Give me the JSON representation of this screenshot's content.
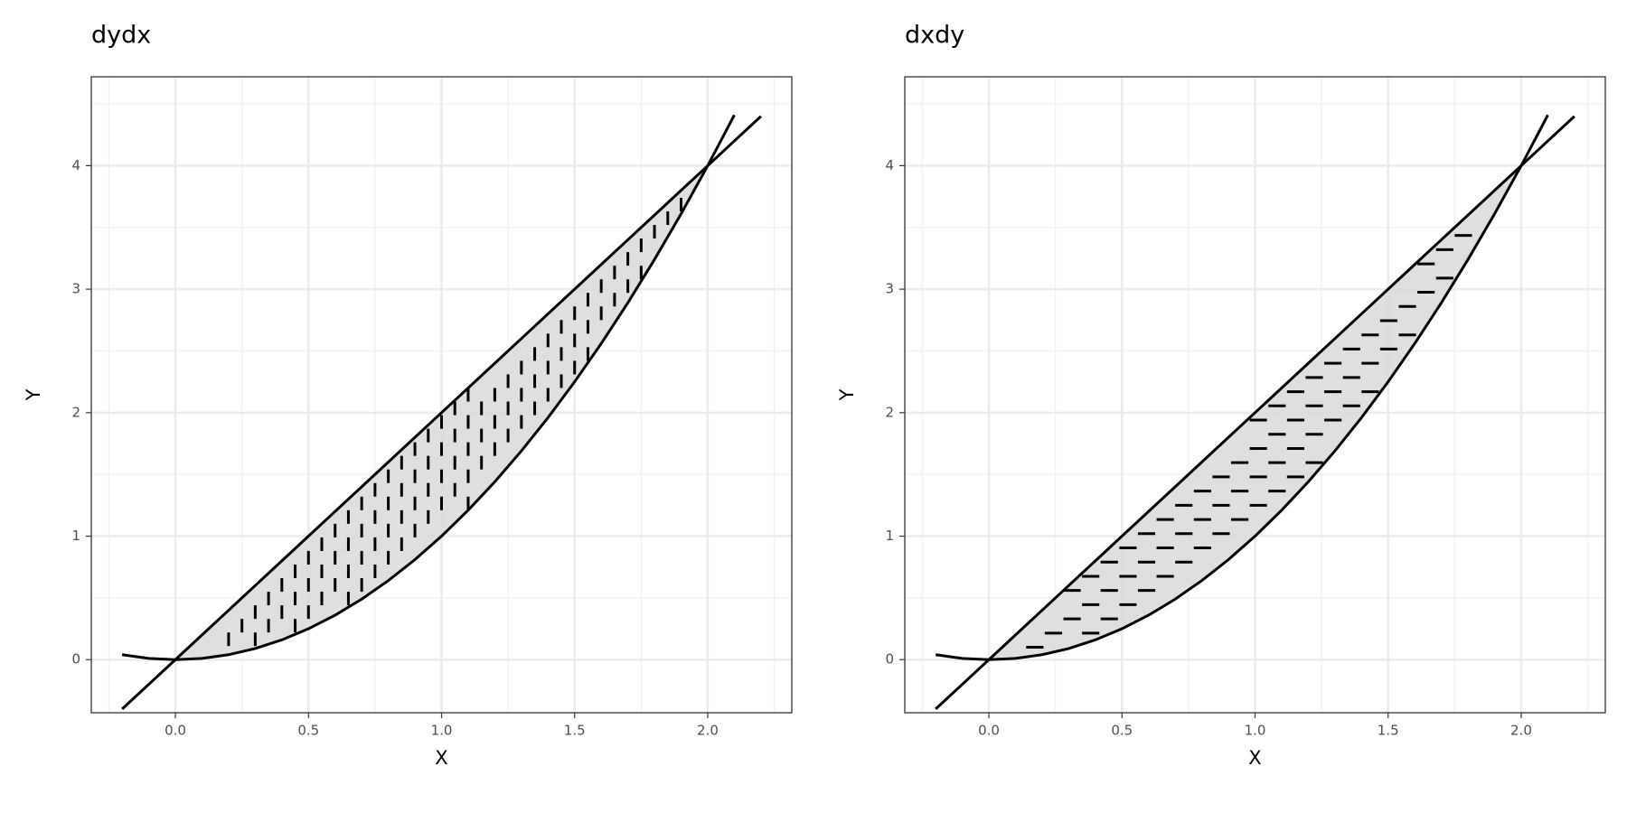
{
  "chart_data": [
    {
      "type": "line",
      "title": "dydx",
      "x_label": "X",
      "y_label": "Y",
      "x": [
        -0.2,
        -0.1,
        0,
        0.1,
        0.2,
        0.3,
        0.4,
        0.5,
        0.6,
        0.7,
        0.8,
        0.9,
        1,
        1.1,
        1.2,
        1.3,
        1.4,
        1.5,
        1.6,
        1.7,
        1.8,
        1.9,
        2,
        2.1,
        2.2
      ],
      "series": [
        {
          "color": "#000000",
          "values": [
            -0.4,
            -0.2,
            0,
            0.2,
            0.4,
            0.6,
            0.8,
            1,
            1.2,
            1.4,
            1.6,
            1.8,
            2,
            2.2,
            2.4,
            2.6,
            2.8,
            3,
            3.2,
            3.4,
            3.6,
            3.8,
            4,
            4.2,
            4.4
          ]
        },
        {
          "color": "#000000",
          "values": [
            0.04,
            0.01,
            0,
            0.01,
            0.04,
            0.09,
            0.16,
            0.25,
            0.36,
            0.49,
            0.64,
            0.81,
            1,
            1.21,
            1.44,
            1.69,
            1.96,
            2.25,
            2.56,
            2.89,
            3.24,
            3.61,
            4,
            4.41,
            null
          ]
        }
      ],
      "fill_color": "#dcdcdc",
      "hatch": "vertical",
      "xlim": [
        -0.316,
        2.316
      ],
      "ylim": [
        -0.43,
        4.72
      ],
      "xticks": [
        {
          "value": 0,
          "label": "0.0"
        },
        {
          "value": 0.5,
          "label": "0.5"
        },
        {
          "value": 1,
          "label": "1.0"
        },
        {
          "value": 1.5,
          "label": "1.5"
        },
        {
          "value": 2,
          "label": "2.0"
        }
      ],
      "yticks": [
        0,
        1,
        2,
        3,
        4
      ],
      "grid": true,
      "minor_grid": true
    },
    {
      "type": "line",
      "title": "dxdy",
      "x_label": "X",
      "y_label": "Y",
      "x": [
        -0.2,
        -0.1,
        0,
        0.1,
        0.2,
        0.3,
        0.4,
        0.5,
        0.6,
        0.7,
        0.8,
        0.9,
        1,
        1.1,
        1.2,
        1.3,
        1.4,
        1.5,
        1.6,
        1.7,
        1.8,
        1.9,
        2,
        2.1,
        2.2
      ],
      "series": [
        {
          "color": "#000000",
          "values": [
            -0.4,
            -0.2,
            0,
            0.2,
            0.4,
            0.6,
            0.8,
            1,
            1.2,
            1.4,
            1.6,
            1.8,
            2,
            2.2,
            2.4,
            2.6,
            2.8,
            3,
            3.2,
            3.4,
            3.6,
            3.8,
            4,
            4.2,
            4.4
          ]
        },
        {
          "color": "#000000",
          "values": [
            0.04,
            0.01,
            0,
            0.01,
            0.04,
            0.09,
            0.16,
            0.25,
            0.36,
            0.49,
            0.64,
            0.81,
            1,
            1.21,
            1.44,
            1.69,
            1.96,
            2.25,
            2.56,
            2.89,
            3.24,
            3.61,
            4,
            4.41,
            null
          ]
        }
      ],
      "fill_color": "#dcdcdc",
      "hatch": "horizontal",
      "xlim": [
        -0.316,
        2.316
      ],
      "ylim": [
        -0.43,
        4.72
      ],
      "xticks": [
        {
          "value": 0,
          "label": "0.0"
        },
        {
          "value": 0.5,
          "label": "0.5"
        },
        {
          "value": 1,
          "label": "1.0"
        },
        {
          "value": 1.5,
          "label": "1.5"
        },
        {
          "value": 2,
          "label": "2.0"
        }
      ],
      "yticks": [
        0,
        1,
        2,
        3,
        4
      ],
      "grid": true,
      "minor_grid": true
    }
  ]
}
